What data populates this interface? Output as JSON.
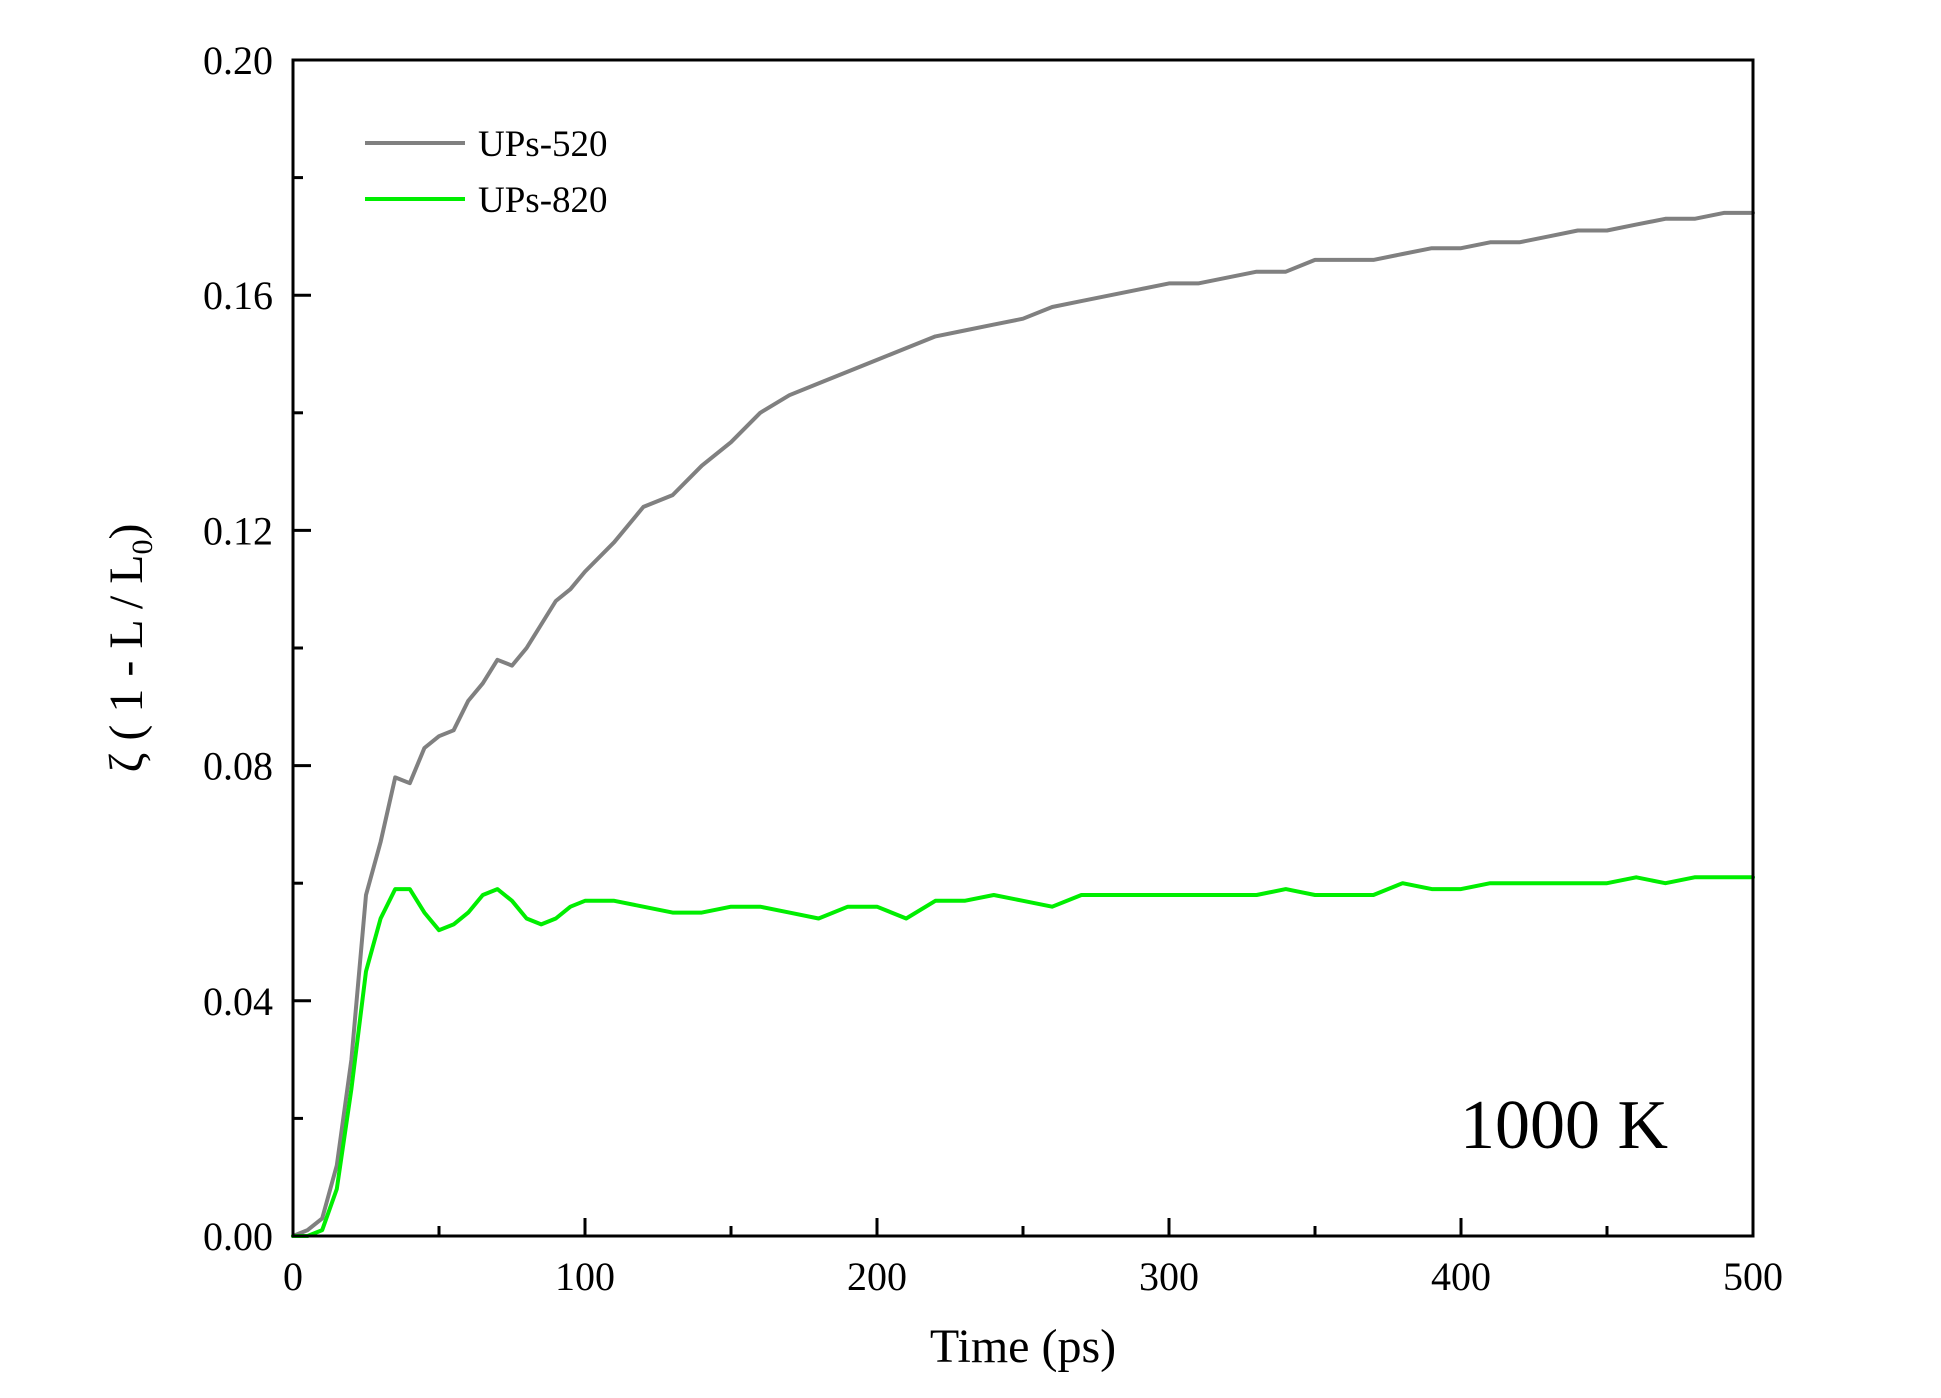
{
  "chart_data": {
    "type": "line",
    "title": "",
    "xlabel": "Time (ps)",
    "ylabel": "ζ ( 1 - L / L",
    "ylabel_subscript": "0",
    "ylabel_close": ")",
    "xlim": [
      0,
      500
    ],
    "ylim": [
      0,
      0.2
    ],
    "x_ticks": [
      "0",
      "100",
      "200",
      "300",
      "400",
      "500"
    ],
    "y_ticks": [
      "0.00",
      "0.04",
      "0.08",
      "0.12",
      "0.16",
      "0.20"
    ],
    "grid": false,
    "legend_position": "top-left",
    "annotation": "1000 K",
    "series": [
      {
        "name": "UPs-520",
        "color": "#808080",
        "x": [
          0,
          5,
          10,
          15,
          20,
          25,
          30,
          35,
          40,
          45,
          50,
          55,
          60,
          65,
          70,
          75,
          80,
          85,
          90,
          95,
          100,
          110,
          120,
          130,
          140,
          150,
          160,
          170,
          180,
          190,
          200,
          210,
          220,
          230,
          240,
          250,
          260,
          270,
          280,
          290,
          300,
          310,
          320,
          330,
          340,
          350,
          360,
          370,
          380,
          390,
          400,
          410,
          420,
          430,
          440,
          450,
          460,
          470,
          480,
          490,
          500
        ],
        "y": [
          0.0,
          0.001,
          0.003,
          0.012,
          0.03,
          0.058,
          0.067,
          0.078,
          0.077,
          0.083,
          0.085,
          0.086,
          0.091,
          0.094,
          0.098,
          0.097,
          0.1,
          0.104,
          0.108,
          0.11,
          0.113,
          0.118,
          0.124,
          0.126,
          0.131,
          0.135,
          0.14,
          0.143,
          0.145,
          0.147,
          0.149,
          0.151,
          0.153,
          0.154,
          0.155,
          0.156,
          0.158,
          0.159,
          0.16,
          0.161,
          0.162,
          0.162,
          0.163,
          0.164,
          0.164,
          0.166,
          0.166,
          0.166,
          0.167,
          0.168,
          0.168,
          0.169,
          0.169,
          0.17,
          0.171,
          0.171,
          0.172,
          0.173,
          0.173,
          0.174,
          0.174
        ]
      },
      {
        "name": "UPs-820",
        "color": "#00ee00",
        "x": [
          0,
          5,
          10,
          15,
          20,
          25,
          30,
          35,
          40,
          45,
          50,
          55,
          60,
          65,
          70,
          75,
          80,
          85,
          90,
          95,
          100,
          110,
          120,
          130,
          140,
          150,
          160,
          170,
          180,
          190,
          200,
          210,
          220,
          230,
          240,
          250,
          260,
          270,
          280,
          290,
          300,
          310,
          320,
          330,
          340,
          350,
          360,
          370,
          380,
          390,
          400,
          410,
          420,
          430,
          440,
          450,
          460,
          470,
          480,
          490,
          500
        ],
        "y": [
          0.0,
          0.0,
          0.001,
          0.008,
          0.025,
          0.045,
          0.054,
          0.059,
          0.059,
          0.055,
          0.052,
          0.053,
          0.055,
          0.058,
          0.059,
          0.057,
          0.054,
          0.053,
          0.054,
          0.056,
          0.057,
          0.057,
          0.056,
          0.055,
          0.055,
          0.056,
          0.056,
          0.055,
          0.054,
          0.056,
          0.056,
          0.054,
          0.057,
          0.057,
          0.058,
          0.057,
          0.056,
          0.058,
          0.058,
          0.058,
          0.058,
          0.058,
          0.058,
          0.058,
          0.059,
          0.058,
          0.058,
          0.058,
          0.06,
          0.059,
          0.059,
          0.06,
          0.06,
          0.06,
          0.06,
          0.06,
          0.061,
          0.06,
          0.061,
          0.061,
          0.061
        ]
      }
    ]
  }
}
